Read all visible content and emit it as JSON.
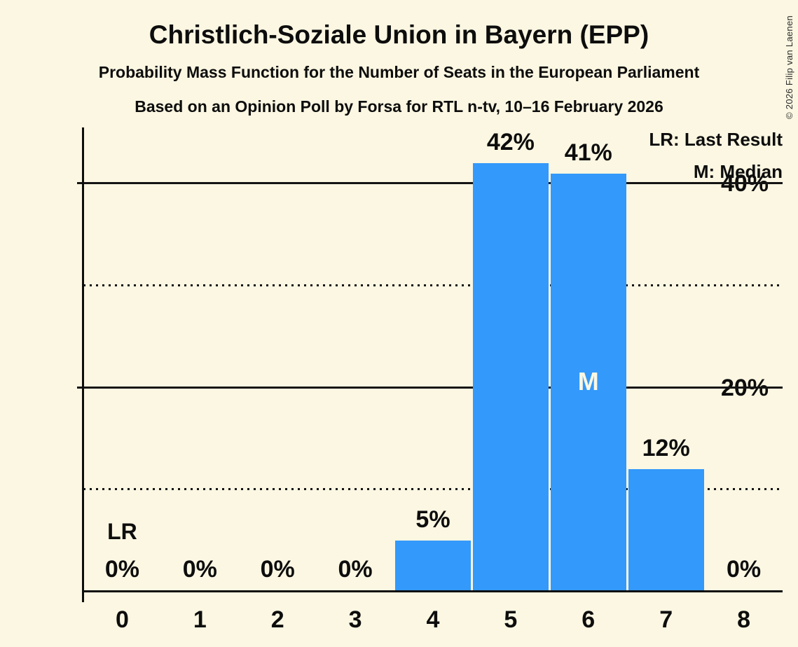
{
  "header": {
    "title": "Christlich-Soziale Union in Bayern (EPP)",
    "subtitle_line1": "Probability Mass Function for the Number of Seats in the European Parliament",
    "subtitle_line2": "Based on an Opinion Poll by Forsa for RTL n-tv, 10–16 February 2026",
    "copyright": "© 2026 Filip van Laenen"
  },
  "legend": {
    "lr_label": "LR: Last Result",
    "m_label": "M: Median"
  },
  "chart_data": {
    "type": "bar",
    "title": "Christlich-Soziale Union in Bayern (EPP)",
    "xlabel": "",
    "ylabel": "",
    "categories": [
      "0",
      "1",
      "2",
      "3",
      "4",
      "5",
      "6",
      "7",
      "8"
    ],
    "values": [
      0,
      0,
      0,
      0,
      5,
      42,
      41,
      12,
      0
    ],
    "bar_labels": [
      "0%",
      "0%",
      "0%",
      "0%",
      "5%",
      "42%",
      "41%",
      "12%",
      "0%"
    ],
    "ylim": [
      0,
      45.5
    ],
    "y_ticks": [
      {
        "pct": 40,
        "label": "40%"
      },
      {
        "pct": 20,
        "label": "20%"
      }
    ],
    "gridlines": {
      "solid_pct": [
        20,
        40
      ],
      "dotted_pct": [
        10,
        30
      ]
    },
    "annotations": {
      "last_result_index": 0,
      "last_result_label": "LR",
      "median_index": 6,
      "median_label": "M"
    },
    "legend_position": "top-right",
    "grid": "horizontal-only",
    "colors": {
      "bar": "#3399FB",
      "background": "#FCF7E2",
      "text": "#0D0D0D"
    }
  }
}
